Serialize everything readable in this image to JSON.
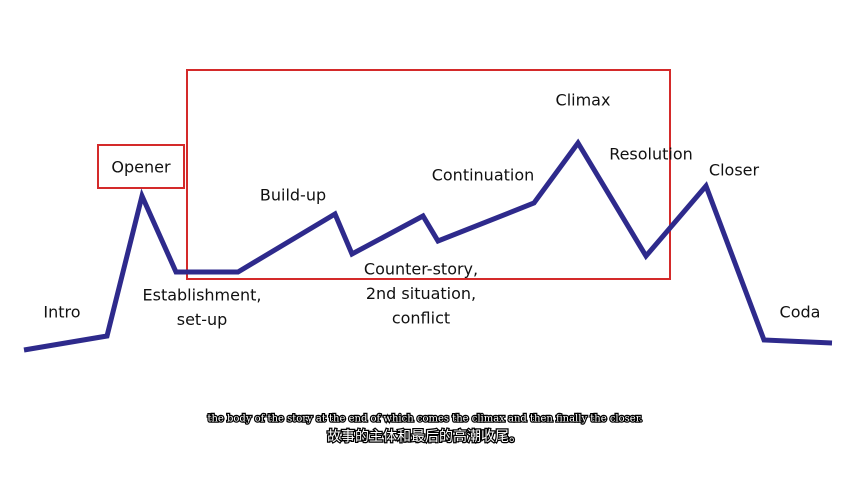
{
  "diagram": {
    "labels": [
      {
        "lines": [
          "Intro"
        ]
      },
      {
        "lines": [
          "Opener"
        ]
      },
      {
        "lines": [
          "Establishment,",
          "set-up"
        ]
      },
      {
        "lines": [
          "Build-up"
        ]
      },
      {
        "lines": [
          "Counter-story,",
          "2nd situation,",
          "conflict"
        ]
      },
      {
        "lines": [
          "Continuation"
        ]
      },
      {
        "lines": [
          "Climax"
        ]
      },
      {
        "lines": [
          "Resolution"
        ]
      },
      {
        "lines": [
          "Closer"
        ]
      },
      {
        "lines": [
          "Coda"
        ]
      }
    ]
  },
  "subtitles": {
    "english": "the body of the story at the end of which comes the climax and then finally the closer.",
    "chinese": "故事的主体和最后的高潮收尾。"
  }
}
